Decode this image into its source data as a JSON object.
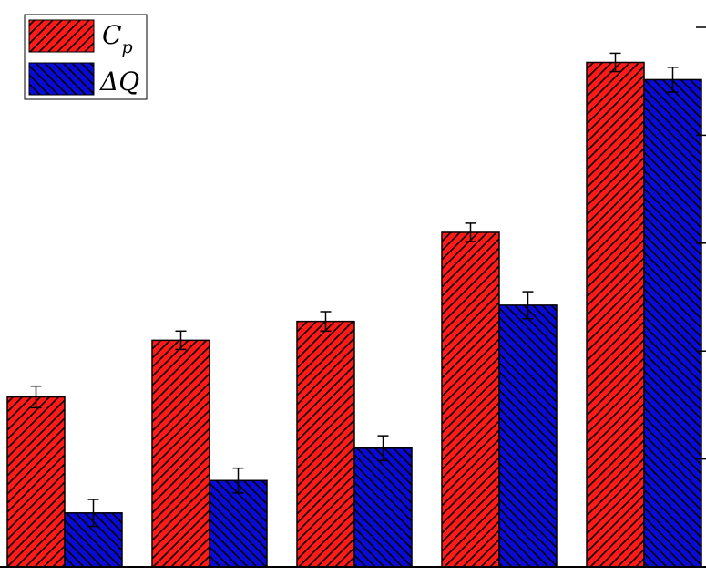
{
  "chart_data": {
    "type": "bar",
    "categories": [
      "",
      "",
      "",
      "",
      ""
    ],
    "series": [
      {
        "name": "Cp",
        "label_main": "C",
        "label_sub": "p",
        "color": "#ff1a1a",
        "values": [
          0.315,
          0.42,
          0.455,
          0.62,
          0.935
        ],
        "errors": [
          0.02,
          0.017,
          0.018,
          0.017,
          0.017
        ]
      },
      {
        "name": "ΔQ",
        "label_main": "ΔQ",
        "label_sub": "",
        "color": "#0a0ad6",
        "values": [
          0.1,
          0.16,
          0.22,
          0.485,
          0.903
        ],
        "errors": [
          0.025,
          0.023,
          0.023,
          0.025,
          0.023
        ]
      }
    ],
    "ylim": [
      0,
      1
    ],
    "title": "",
    "xlabel": "",
    "ylabel": "",
    "legend": "top-left",
    "grid": false,
    "hatch": true
  }
}
